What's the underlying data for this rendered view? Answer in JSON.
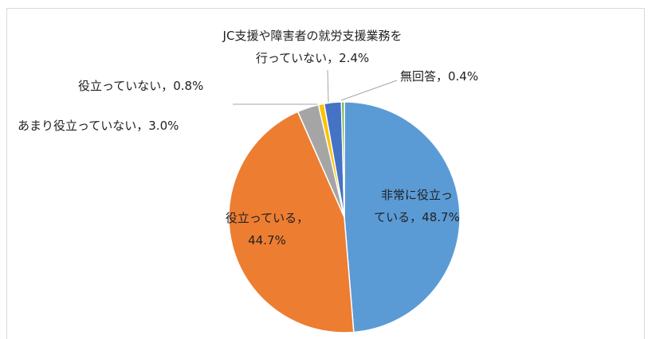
{
  "chart_data": {
    "type": "pie",
    "values": [
      48.7,
      44.7,
      3.0,
      0.8,
      2.4,
      0.4
    ],
    "value_labels": [
      "非常に役立っている，48.7%",
      "役立っている，44.7%",
      "あまり役立っていない，3.0%",
      "役立っていない，0.8%",
      "JC支援や障害者の就労支援業務を行っていない，2.4%",
      "無回答，0.4%"
    ],
    "colors": [
      "#5b9bd5",
      "#ed7d31",
      "#a5a5a5",
      "#ffc000",
      "#4472c4",
      "#70ad47"
    ]
  }
}
